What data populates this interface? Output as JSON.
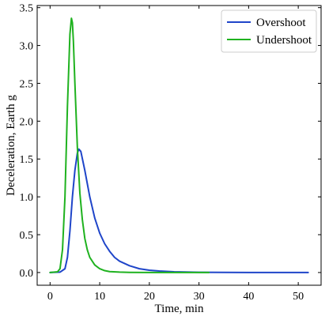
{
  "chart_data": {
    "type": "line",
    "title": "",
    "xlabel": "Time, min",
    "ylabel": "Deceleration, Earth g",
    "xlim": [
      -2.6,
      54.6
    ],
    "ylim": [
      -0.168,
      3.528
    ],
    "xticks": [
      0,
      10,
      20,
      30,
      40,
      50
    ],
    "yticks": [
      0.0,
      0.5,
      1.0,
      1.5,
      2.0,
      2.5,
      3.0,
      3.5
    ],
    "xtick_labels": [
      "0",
      "10",
      "20",
      "30",
      "40",
      "50"
    ],
    "ytick_labels": [
      "0.0",
      "0.5",
      "1.0",
      "1.5",
      "2.0",
      "2.5",
      "3.0",
      "3.5"
    ],
    "grid": false,
    "legend_position": "top-right",
    "series": [
      {
        "name": "Overshoot",
        "color": "#1f45c9",
        "x": [
          0,
          2,
          3,
          3.5,
          4,
          4.5,
          5,
          5.5,
          5.8,
          6.2,
          7,
          8,
          9,
          10,
          11,
          12,
          13,
          14,
          16,
          18,
          20,
          22,
          25,
          28,
          30,
          35,
          40,
          45,
          52
        ],
        "y": [
          0,
          0.005,
          0.05,
          0.2,
          0.55,
          1.0,
          1.35,
          1.58,
          1.63,
          1.6,
          1.35,
          1.0,
          0.72,
          0.52,
          0.38,
          0.28,
          0.2,
          0.15,
          0.09,
          0.05,
          0.03,
          0.02,
          0.01,
          0.005,
          0.003,
          0.001,
          0,
          0,
          0
        ]
      },
      {
        "name": "Undershoot",
        "color": "#1fb21f",
        "x": [
          0,
          1.5,
          2,
          2.5,
          3,
          3.5,
          4,
          4.3,
          4.5,
          4.7,
          5,
          5.5,
          6,
          6.5,
          7,
          7.5,
          8,
          9,
          10,
          11,
          12,
          14,
          16,
          20,
          25,
          32
        ],
        "y": [
          0,
          0.01,
          0.05,
          0.3,
          1.0,
          2.2,
          3.15,
          3.36,
          3.3,
          3.05,
          2.5,
          1.65,
          1.05,
          0.7,
          0.45,
          0.3,
          0.2,
          0.1,
          0.05,
          0.025,
          0.012,
          0.005,
          0.002,
          0,
          0,
          0
        ]
      }
    ]
  }
}
